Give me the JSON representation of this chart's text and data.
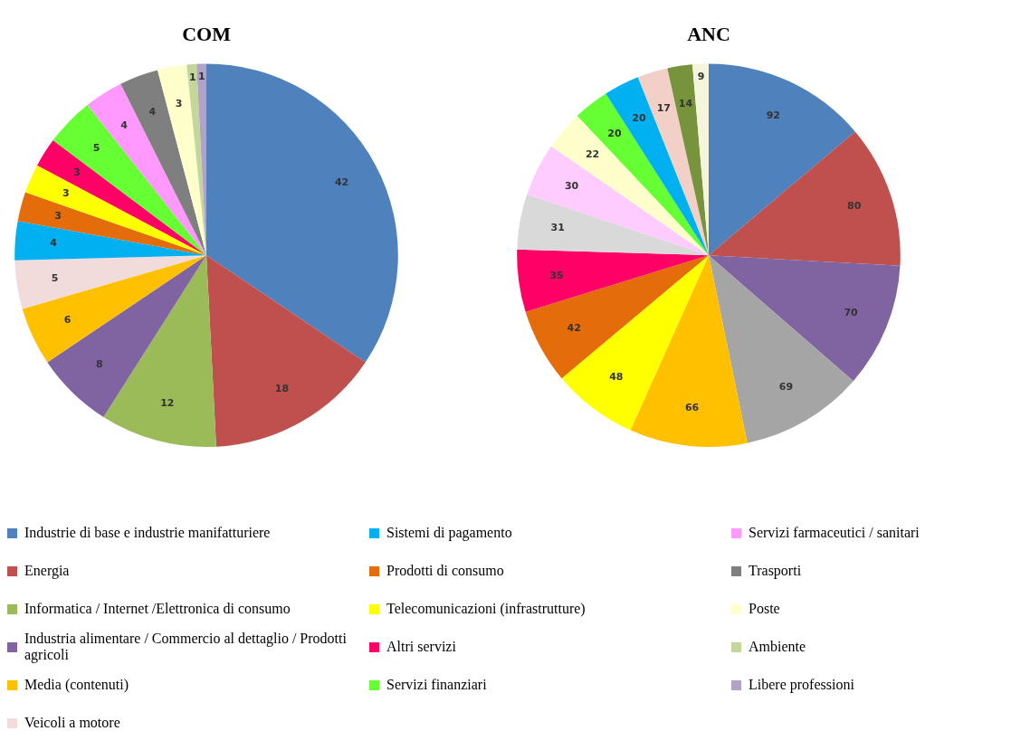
{
  "chart_data": [
    {
      "type": "pie",
      "title": "COM",
      "categories": [
        "Industrie di base e industrie manifatturiere",
        "Energia",
        "Informatica / Internet /Elettronica di consumo",
        "Industria alimentare / Commercio al dettaglio / Prodotti agricoli",
        "Media (contenuti)",
        "Veicoli a motore",
        "Sistemi di pagamento",
        "Prodotti di consumo",
        "Telecomunicazioni (infrastrutture)",
        "Altri servizi",
        "Servizi finanziari",
        "Servizi farmaceutici / sanitari",
        "Trasporti",
        "Poste",
        "Ambiente",
        "Libere professioni"
      ],
      "values": [
        42,
        18,
        12,
        8,
        6,
        5,
        4,
        3,
        3,
        3,
        5,
        4,
        4,
        3,
        1,
        1
      ],
      "colors": [
        "#4f81bd",
        "#c0504d",
        "#9bbb59",
        "#8064a2",
        "#ffc000",
        "#f2dcdb",
        "#00b0f0",
        "#e46c0a",
        "#ffff00",
        "#ff0066",
        "#66ff33",
        "#ff99ff",
        "#7f7f7f",
        "#ffffcc",
        "#c4d79b",
        "#b3a2c7"
      ],
      "data_labels": true,
      "legend": "bottom"
    },
    {
      "type": "pie",
      "title": "ANC",
      "categories": [
        null,
        null,
        null,
        null,
        null,
        null,
        null,
        null,
        null,
        null,
        null,
        null,
        null,
        null,
        null,
        null
      ],
      "values": [
        92,
        80,
        70,
        69,
        66,
        48,
        42,
        35,
        31,
        30,
        22,
        20,
        20,
        17,
        14,
        9
      ],
      "colors": [
        "#4f81bd",
        "#c0504d",
        "#8064a2",
        "#a5a5a5",
        "#ffc000",
        "#ffff00",
        "#e46c0a",
        "#ff0066",
        "#d9d9d9",
        "#ffccff",
        "#ffffcc",
        "#66ff33",
        "#00b0f0",
        "#f2cfc7",
        "#77933c",
        "#f5f5dc"
      ],
      "data_labels": true
    }
  ]
}
